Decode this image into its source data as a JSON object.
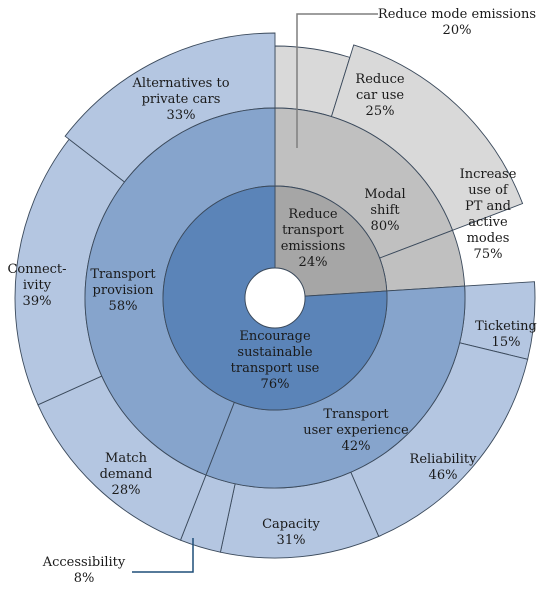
{
  "chart_data": {
    "type": "sunburst",
    "title": "",
    "rings": [
      {
        "level": "center",
        "segments": [
          {
            "id": "reduce-transport-emissions",
            "label": "Reduce\ntransport\nemissions\n24%",
            "value": 24,
            "color": "#a6a6a6"
          },
          {
            "id": "encourage-sustainable-transport-use",
            "label": "Encourage\nsustainable\ntransport use\n76%",
            "value": 76,
            "color": "#5b84b8"
          }
        ]
      },
      {
        "level": "middle",
        "segments": [
          {
            "id": "modal-shift",
            "parent": "reduce-transport-emissions",
            "label": "Modal\nshift\n80%",
            "value": 80,
            "color": "#c0c0c0"
          },
          {
            "id": "reduce-mode-emissions",
            "parent": "reduce-transport-emissions",
            "label": "Reduce mode emissions\n20%",
            "value": 20,
            "color": "#c0c0c0",
            "callout": true
          },
          {
            "id": "transport-user-experience",
            "parent": "encourage-sustainable-transport-use",
            "label": "Transport\nuser experience\n42%",
            "value": 42,
            "color": "#86a4cc"
          },
          {
            "id": "transport-provision",
            "parent": "encourage-sustainable-transport-use",
            "label": "Transport\nprovision\n58%",
            "value": 58,
            "color": "#86a4cc"
          }
        ]
      },
      {
        "level": "outer",
        "segments": [
          {
            "id": "reduce-car-use",
            "parent": "modal-shift",
            "label": "Reduce\ncar use\n25%",
            "value": 25,
            "color": "#d9d9d9"
          },
          {
            "id": "increase-use-of-pt",
            "parent": "modal-shift",
            "label": "Increase\nuse of\nPT and\nactive\nmodes\n75%",
            "value": 75,
            "color": "#d9d9d9"
          },
          {
            "id": "ticketing",
            "parent": "transport-user-experience",
            "label": "Ticketing\n15%",
            "value": 15,
            "color": "#b4c6e1"
          },
          {
            "id": "reliability",
            "parent": "transport-user-experience",
            "label": "Reliability\n46%",
            "value": 46,
            "color": "#b4c6e1"
          },
          {
            "id": "capacity",
            "parent": "transport-user-experience",
            "label": "Capacity\n31%",
            "value": 31,
            "color": "#b4c6e1"
          },
          {
            "id": "accessibility",
            "parent": "transport-user-experience",
            "label": "Accessibility\n8%",
            "value": 8,
            "color": "#b4c6e1",
            "callout": true
          },
          {
            "id": "match-demand",
            "parent": "transport-provision",
            "label": "Match\ndemand\n28%",
            "value": 28,
            "color": "#b4c6e1"
          },
          {
            "id": "connectivity",
            "parent": "transport-provision",
            "label": "Connect-\nivity\n39%",
            "value": 39,
            "color": "#b4c6e1"
          },
          {
            "id": "alternatives-to-private-cars",
            "parent": "transport-provision",
            "label": "Alternatives to\nprivate cars\n33%",
            "value": 33,
            "color": "#b4c6e1"
          }
        ]
      }
    ],
    "colors": {
      "center_grey": "#a6a6a6",
      "center_blue": "#5b84b8",
      "middle_grey": "#c0c0c0",
      "middle_blue": "#86a4cc",
      "outer_grey": "#d9d9d9",
      "outer_blue": "#b4c6e1",
      "stroke": "#3b4a5c",
      "callout_line_grey": "#7f7f7f",
      "callout_line_blue": "#1f4e79"
    }
  }
}
